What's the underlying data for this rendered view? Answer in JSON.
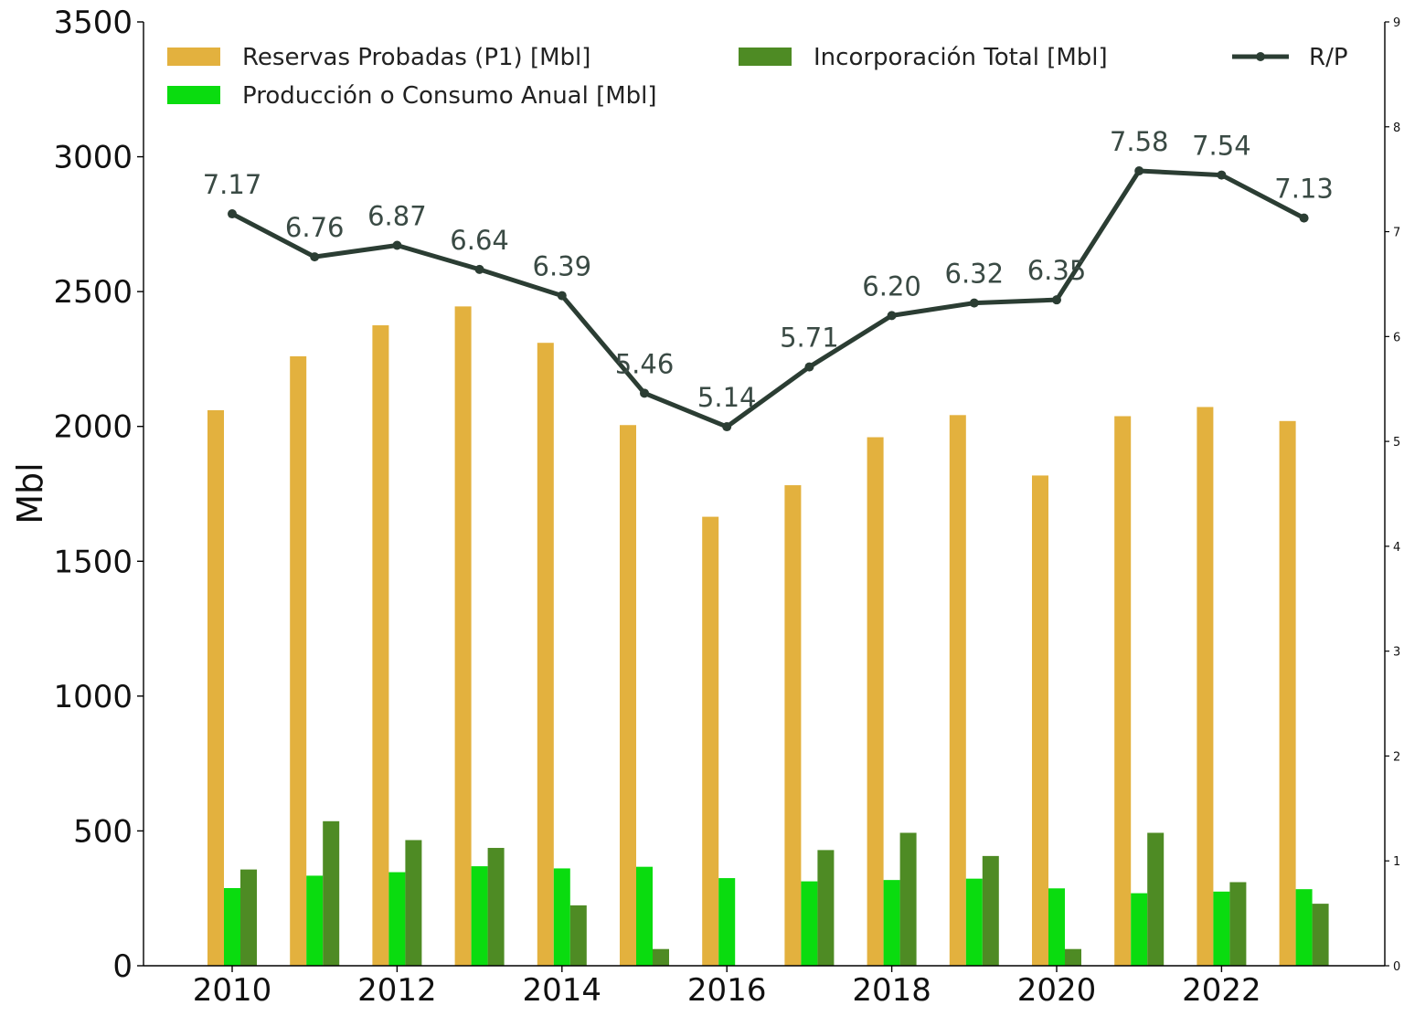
{
  "chart_data": {
    "type": "bar",
    "title": "",
    "ylabel": "Mbl",
    "ylabel_right": "",
    "x": [
      2010,
      2011,
      2012,
      2013,
      2014,
      2015,
      2016,
      2017,
      2018,
      2019,
      2020,
      2021,
      2022,
      2023
    ],
    "x_ticks": [
      "2010",
      "2012",
      "2014",
      "2016",
      "2018",
      "2020",
      "2022"
    ],
    "ylim": [
      0,
      3500
    ],
    "y_ticks": [
      "0",
      "500",
      "1000",
      "1500",
      "2000",
      "2500",
      "3000",
      "3500"
    ],
    "ylim_right": [
      0,
      9
    ],
    "y_ticks_right": [
      "0",
      "1",
      "2",
      "3",
      "4",
      "5",
      "6",
      "7",
      "8",
      "9"
    ],
    "grid": false,
    "legend_position": "top",
    "series": [
      {
        "name": "Reservas Probadas (P1) [Mbl]",
        "kind": "bar",
        "color": "#E3B13E",
        "values": [
          2060,
          2260,
          2375,
          2445,
          2310,
          2005,
          1665,
          1782,
          1960,
          2042,
          1818,
          2038,
          2072,
          2020
        ]
      },
      {
        "name": "Producción o Consumo Anual [Mbl]",
        "kind": "bar",
        "color": "#0ADC0F",
        "values": [
          288,
          334,
          347,
          369,
          361,
          367,
          325,
          313,
          318,
          323,
          287,
          269,
          275,
          284
        ]
      },
      {
        "name": "Incorporación Total [Mbl]",
        "kind": "bar",
        "color": "#4E8B24",
        "values": [
          357,
          536,
          466,
          437,
          224,
          62,
          0,
          429,
          493,
          407,
          62,
          493,
          310,
          230
        ]
      },
      {
        "name": "R/P",
        "kind": "line",
        "axis": "right",
        "color": "#2B3D33",
        "values": [
          7.17,
          6.76,
          6.87,
          6.64,
          6.39,
          5.46,
          5.14,
          5.71,
          6.2,
          6.32,
          6.35,
          7.58,
          7.54,
          7.13
        ],
        "labels": [
          "7.17",
          "6.76",
          "6.87",
          "6.64",
          "6.39",
          "5.46",
          "5.14",
          "5.71",
          "6.20",
          "6.32",
          "6.35",
          "7.58",
          "7.54",
          "7.13"
        ]
      }
    ]
  }
}
